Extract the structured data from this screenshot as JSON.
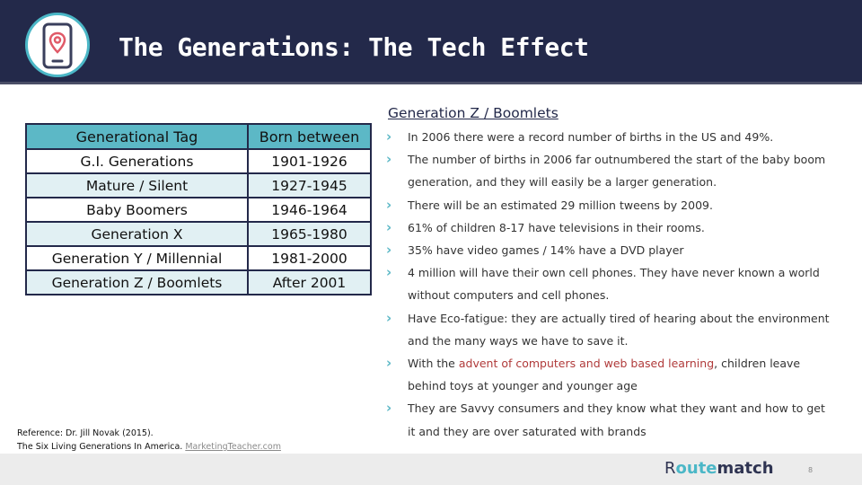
{
  "header": {
    "title": "The Generations: The Tech Effect",
    "icon": "phone-location-icon"
  },
  "table": {
    "headers": [
      "Generational Tag",
      "Born between"
    ],
    "rows": [
      [
        "G.I. Generations",
        "1901-1926"
      ],
      [
        "Mature / Silent",
        "1927-1945"
      ],
      [
        "Baby Boomers",
        "1946-1964"
      ],
      [
        "Generation X",
        "1965-1980"
      ],
      [
        "Generation Y / Millennial",
        "1981-2000"
      ],
      [
        "Generation Z / Boomlets",
        "After 2001"
      ]
    ]
  },
  "section": {
    "title": "Generation Z / Boomlets",
    "bullets": [
      {
        "text": "In 2006 there were a record number of births in the US and 49%."
      },
      {
        "text": "The number of births in 2006 far outnumbered the start of the baby boom generation, and they will easily be a larger generation."
      },
      {
        "text": "There will be an estimated 29 million tweens by 2009."
      },
      {
        "text": "61% of children 8-17 have televisions in their rooms."
      },
      {
        "text": "35% have video games / 14% have a DVD player"
      },
      {
        "text": "4 million will have their own cell phones. They have never known a world without computers and cell phones."
      },
      {
        "text": "Have Eco-fatigue: they are actually tired of hearing about the environment and the many ways we have to save it."
      },
      {
        "pre": "With the ",
        "highlight": "advent of computers and web based learning",
        "post": ", children leave behind toys at younger and younger age"
      },
      {
        "text": "They are Savvy consumers and they know what they want and how to get it and they are over saturated with brands"
      }
    ]
  },
  "reference": {
    "line1": "Reference: Dr. Jill Novak (2015).",
    "line2_text": "The Six Living Generations In America. ",
    "link": "MarketingTeacher.com"
  },
  "footer": {
    "brand_part1": "R",
    "brand_part2": "oute",
    "brand_part3": "match",
    "page_number": "8"
  },
  "colors": {
    "header_bg": "#23294a",
    "accent": "#5cb8c6",
    "highlight_text": "#b03a3a"
  }
}
